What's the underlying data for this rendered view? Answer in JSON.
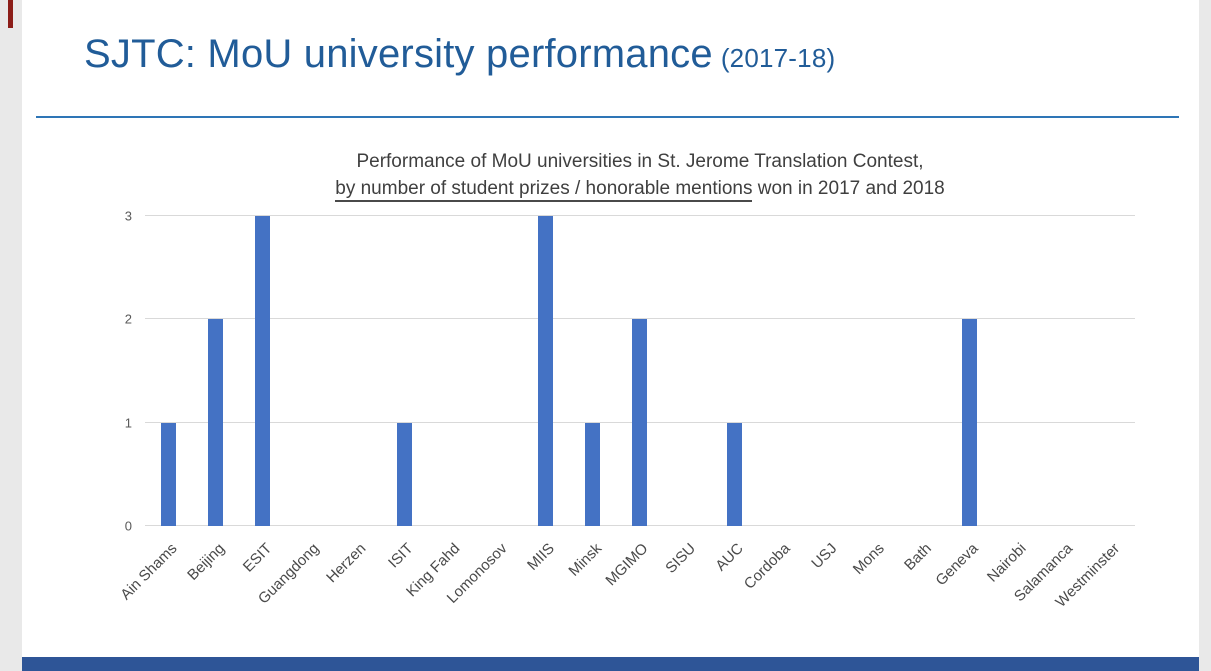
{
  "slide": {
    "title": "SJTC: MoU university performance",
    "title_suffix": "(2017-18)",
    "title_color": "#215C98",
    "divider_color": "#2E75B6",
    "accent_stripe_color": "#8C1D18"
  },
  "chart_data": {
    "type": "bar",
    "title_line1": "Performance of MoU universities in St. Jerome Translation Contest,",
    "title_line2_underlined": "by number of student prizes / honorable mentions",
    "title_line2_rest": " won in 2017 and 2018",
    "categories": [
      "Ain Shams",
      "Beijing",
      "ESIT",
      "Guangdong",
      "Herzen",
      "ISIT",
      "King Fahd",
      "Lomonosov",
      "MIIS",
      "Minsk",
      "MGIMO",
      "SISU",
      "AUC",
      "Cordoba",
      "USJ",
      "Mons",
      "Bath",
      "Geneva",
      "Nairobi",
      "Salamanca",
      "Westminster"
    ],
    "values": [
      1,
      2,
      3,
      0,
      0,
      1,
      0,
      0,
      3,
      1,
      2,
      0,
      1,
      0,
      0,
      0,
      0,
      2,
      0,
      0,
      0
    ],
    "ylim": [
      0,
      3
    ],
    "yticks": [
      0,
      1,
      2,
      3
    ],
    "bar_color": "#4472C4",
    "grid": true,
    "legend": false,
    "xlabel": "",
    "ylabel": ""
  },
  "footer": {
    "bar_color": "#2E5597"
  }
}
